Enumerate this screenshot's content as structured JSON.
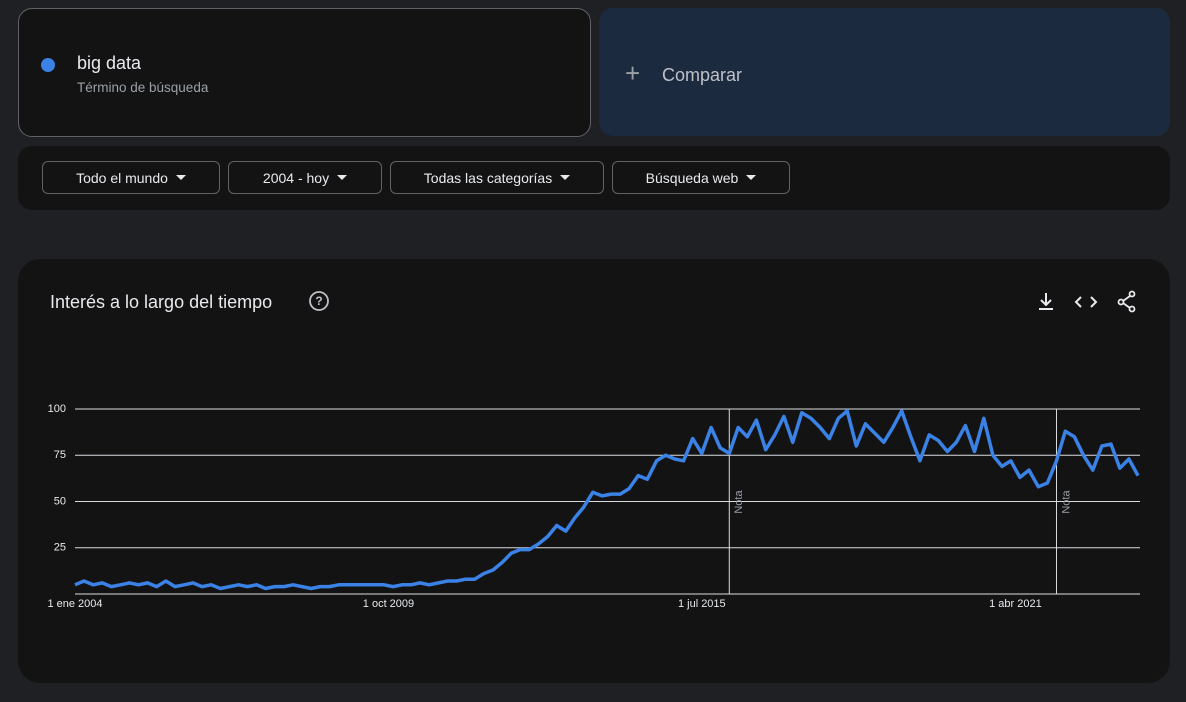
{
  "search": {
    "subtitle": "Término de búsqueda",
    "compare": "Comparar"
  },
  "filters": [
    "Todo el mundo",
    "2004 - hoy",
    "Todas las categorías",
    "Búsqueda web"
  ],
  "chart_data": {
    "type": "line",
    "title": "Interés a lo largo del tiempo",
    "x": [
      "2004-01-01",
      "2004-03-01",
      "2004-05-01",
      "2004-07-01",
      "2004-09-01",
      "2004-11-01",
      "2005-01-01",
      "2005-03-01",
      "2005-05-01",
      "2005-07-01",
      "2005-09-01",
      "2005-11-01",
      "2006-01-01",
      "2006-03-01",
      "2006-05-01",
      "2006-07-01",
      "2006-09-01",
      "2006-11-01",
      "2007-01-01",
      "2007-03-01",
      "2007-05-01",
      "2007-07-01",
      "2007-09-01",
      "2007-11-01",
      "2008-01-01",
      "2008-03-01",
      "2008-05-01",
      "2008-07-01",
      "2008-09-01",
      "2008-11-01",
      "2009-01-01",
      "2009-03-01",
      "2009-05-01",
      "2009-07-01",
      "2009-09-01",
      "2009-11-01",
      "2010-01-01",
      "2010-03-01",
      "2010-05-01",
      "2010-07-01",
      "2010-09-01",
      "2010-11-01",
      "2011-01-01",
      "2011-03-01",
      "2011-05-01",
      "2011-07-01",
      "2011-09-01",
      "2011-11-01",
      "2012-01-01",
      "2012-03-01",
      "2012-05-01",
      "2012-07-01",
      "2012-09-01",
      "2012-11-01",
      "2013-01-01",
      "2013-03-01",
      "2013-05-01",
      "2013-07-01",
      "2013-09-01",
      "2013-11-01",
      "2014-01-01",
      "2014-03-01",
      "2014-05-01",
      "2014-07-01",
      "2014-09-01",
      "2014-11-01",
      "2015-01-01",
      "2015-03-01",
      "2015-05-01",
      "2015-07-01",
      "2015-09-01",
      "2015-11-01",
      "2016-01-01",
      "2016-03-01",
      "2016-05-01",
      "2016-07-01",
      "2016-09-01",
      "2016-11-01",
      "2017-01-01",
      "2017-03-01",
      "2017-05-01",
      "2017-07-01",
      "2017-09-01",
      "2017-11-01",
      "2018-01-01",
      "2018-03-01",
      "2018-05-01",
      "2018-07-01",
      "2018-09-01",
      "2018-11-01",
      "2019-01-01",
      "2019-03-01",
      "2019-05-01",
      "2019-07-01",
      "2019-09-01",
      "2019-11-01",
      "2020-01-01",
      "2020-03-01",
      "2020-05-01",
      "2020-07-01",
      "2020-09-01",
      "2020-11-01",
      "2021-01-01",
      "2021-03-01",
      "2021-05-01",
      "2021-07-01",
      "2021-09-01",
      "2021-11-01",
      "2022-01-01",
      "2022-03-01",
      "2022-05-01",
      "2022-07-01",
      "2022-09-01",
      "2022-11-01",
      "2023-01-01",
      "2023-03-01",
      "2023-05-01",
      "2023-07-01"
    ],
    "series": [
      {
        "name": "big data",
        "color": "#3b82e6",
        "values": [
          5,
          7,
          5,
          6,
          4,
          5,
          6,
          5,
          6,
          4,
          7,
          4,
          5,
          6,
          4,
          5,
          3,
          4,
          5,
          4,
          5,
          3,
          4,
          4,
          5,
          4,
          3,
          4,
          4,
          5,
          5,
          5,
          5,
          5,
          5,
          4,
          5,
          5,
          6,
          5,
          6,
          7,
          7,
          8,
          8,
          11,
          13,
          17,
          22,
          24,
          24,
          27,
          31,
          37,
          34,
          41,
          47,
          55,
          53,
          54,
          54,
          57,
          64,
          62,
          72,
          75,
          73,
          72,
          84,
          76,
          90,
          79,
          76,
          90,
          85,
          94,
          78,
          86,
          96,
          82,
          98,
          95,
          90,
          84,
          95,
          99,
          80,
          92,
          87,
          82,
          90,
          99,
          85,
          72,
          86,
          83,
          77,
          82,
          91,
          77,
          95,
          75,
          69,
          72,
          63,
          67,
          58,
          60,
          72,
          88,
          85,
          75,
          67,
          80,
          81,
          68,
          73,
          64
        ]
      }
    ],
    "xlim": [
      "2004-01-01",
      "2023-07-01"
    ],
    "xticks": [
      {
        "value": "2004-01-01",
        "label": "1 ene 2004"
      },
      {
        "value": "2009-10-01",
        "label": "1 oct 2009"
      },
      {
        "value": "2015-07-01",
        "label": "1 jul 2015"
      },
      {
        "value": "2021-04-01",
        "label": "1 abr 2021"
      }
    ],
    "ylim": [
      0,
      100
    ],
    "yticks": [
      25,
      50,
      75,
      100
    ],
    "grid": true,
    "annotations": [
      {
        "x": "2016-01-01",
        "label": "Nota"
      },
      {
        "x": "2022-01-01",
        "label": "Nota"
      }
    ]
  }
}
